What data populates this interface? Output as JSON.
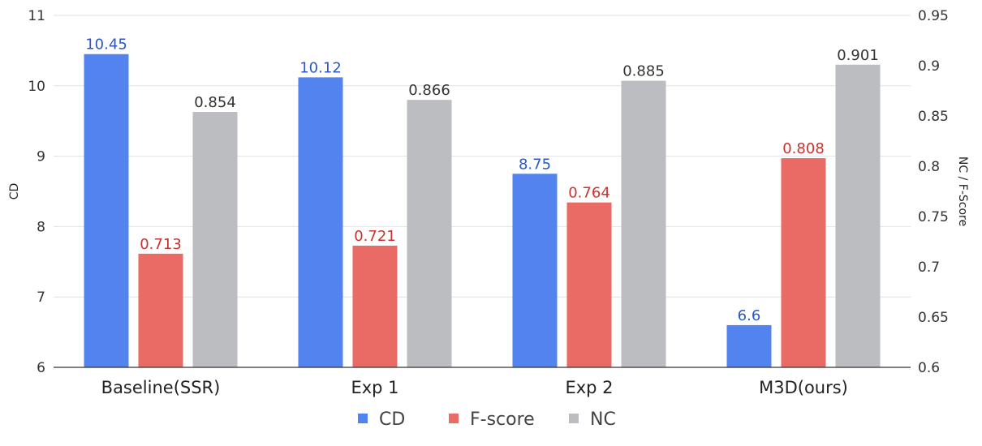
{
  "chart_data": {
    "type": "bar",
    "title": "",
    "categories": [
      "Baseline(SSR)",
      "Exp 1",
      "Exp 2",
      "M3D(ours)"
    ],
    "series": [
      {
        "name": "CD",
        "axis": "left",
        "color": "#5283ee",
        "label_color": "#2a58c8",
        "values": [
          10.45,
          10.12,
          8.75,
          6.6
        ]
      },
      {
        "name": "F-score",
        "axis": "right",
        "color": "#ea6b66",
        "label_color": "#c8332e",
        "values": [
          0.713,
          0.721,
          0.764,
          0.808
        ]
      },
      {
        "name": "NC",
        "axis": "right",
        "color": "#bbbdc0",
        "label_color": "#333333",
        "values": [
          0.854,
          0.866,
          0.885,
          0.901
        ]
      }
    ],
    "y_left": {
      "label": "CD",
      "min": 6,
      "max": 11,
      "ticks": [
        "6",
        "7",
        "8",
        "9",
        "10",
        "11"
      ]
    },
    "y_right": {
      "label": "NC / F-Score",
      "min": 0.6,
      "max": 0.95,
      "ticks": [
        "0.6",
        "0.65",
        "0.7",
        "0.75",
        "0.8",
        "0.85",
        "0.9",
        "0.95"
      ]
    },
    "data_labels": [
      [
        "10.45",
        "0.713",
        "0.854"
      ],
      [
        "10.12",
        "0.721",
        "0.866"
      ],
      [
        "8.75",
        "0.764",
        "0.885"
      ],
      [
        "6.6",
        "0.808",
        "0.901"
      ]
    ],
    "legend": {
      "position": "bottom-center",
      "entries": [
        "CD",
        "F-score",
        "NC"
      ]
    },
    "grid": true
  }
}
